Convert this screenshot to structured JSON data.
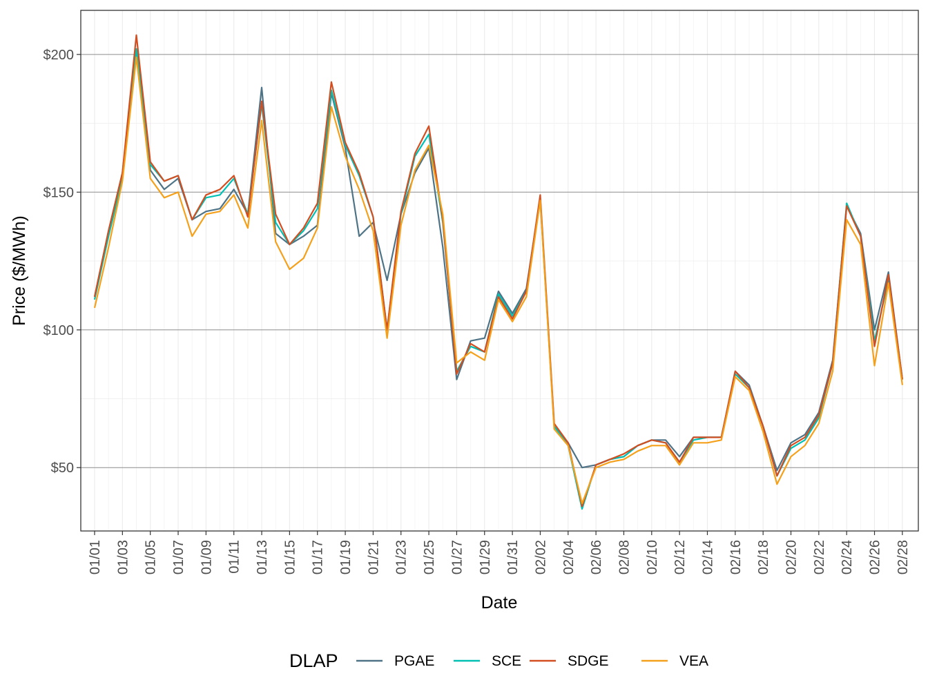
{
  "chart_data": {
    "type": "line",
    "xlabel": "Date",
    "ylabel": "Price ($/MWh)",
    "x_ticks": [
      "01/01",
      "01/03",
      "01/05",
      "01/07",
      "01/09",
      "01/11",
      "01/13",
      "01/15",
      "01/17",
      "01/19",
      "01/21",
      "01/23",
      "01/25",
      "01/27",
      "01/29",
      "01/31",
      "02/02",
      "02/04",
      "02/06",
      "02/08",
      "02/10",
      "02/12",
      "02/14",
      "02/16",
      "02/18",
      "02/20",
      "02/22",
      "02/24",
      "02/26",
      "02/28"
    ],
    "y_ticks": [
      50,
      100,
      150,
      200
    ],
    "y_tick_labels": [
      "$50",
      "$100",
      "$150",
      "$200"
    ],
    "ylim": [
      27,
      216
    ],
    "x": [
      "01/01",
      "01/02",
      "01/03",
      "01/04",
      "01/05",
      "01/06",
      "01/07",
      "01/08",
      "01/09",
      "01/10",
      "01/11",
      "01/12",
      "01/13",
      "01/14",
      "01/15",
      "01/16",
      "01/17",
      "01/18",
      "01/19",
      "01/20",
      "01/21",
      "01/22",
      "01/23",
      "01/24",
      "01/25",
      "01/26",
      "01/27",
      "01/28",
      "01/29",
      "01/30",
      "01/31",
      "02/01",
      "02/02",
      "02/03",
      "02/04",
      "02/05",
      "02/06",
      "02/07",
      "02/08",
      "02/09",
      "02/10",
      "02/11",
      "02/12",
      "02/13",
      "02/14",
      "02/15",
      "02/16",
      "02/17",
      "02/18",
      "02/19",
      "02/20",
      "02/21",
      "02/22",
      "02/23",
      "02/24",
      "02/25",
      "02/26",
      "02/27",
      "02/28"
    ],
    "grid": true,
    "legend": {
      "title": "DLAP",
      "position": "bottom"
    },
    "series": [
      {
        "name": "PGAE",
        "color": "#4e7386",
        "values": [
          112,
          136,
          157,
          202,
          158,
          151,
          155,
          140,
          143,
          144,
          151,
          142,
          188,
          135,
          131,
          134,
          138,
          186,
          166,
          134,
          139,
          118,
          142,
          157,
          166,
          130,
          82,
          96,
          97,
          114,
          106,
          115,
          148,
          65,
          59,
          50,
          51,
          53,
          54,
          58,
          60,
          60,
          54,
          61,
          61,
          61,
          85,
          80,
          65,
          49,
          59,
          62,
          70,
          89,
          145,
          135,
          100,
          121,
          82
        ]
      },
      {
        "name": "SCE",
        "color": "#00bfb3",
        "values": [
          111,
          134,
          155,
          202,
          160,
          154,
          156,
          140,
          148,
          149,
          155,
          142,
          182,
          139,
          131,
          136,
          144,
          187,
          167,
          156,
          141,
          100,
          142,
          163,
          171,
          139,
          85,
          94,
          92,
          113,
          105,
          114,
          147,
          65,
          58,
          35,
          51,
          53,
          54,
          58,
          60,
          59,
          52,
          60,
          61,
          61,
          84,
          79,
          65,
          47,
          57,
          60,
          68,
          88,
          146,
          134,
          96,
          118,
          82
        ]
      },
      {
        "name": "SDGE",
        "color": "#d24e21",
        "values": [
          112,
          136,
          157,
          207,
          161,
          154,
          156,
          140,
          149,
          151,
          156,
          141,
          183,
          142,
          131,
          137,
          146,
          190,
          168,
          157,
          141,
          100,
          143,
          164,
          174,
          140,
          84,
          95,
          92,
          112,
          104,
          114,
          149,
          66,
          59,
          36,
          51,
          53,
          55,
          58,
          60,
          59,
          52,
          61,
          61,
          61,
          85,
          79,
          65,
          47,
          58,
          61,
          69,
          88,
          145,
          134,
          94,
          120,
          82
        ]
      },
      {
        "name": "VEA",
        "color": "#f5a01a",
        "values": [
          108,
          130,
          154,
          199,
          155,
          148,
          150,
          134,
          142,
          143,
          149,
          137,
          176,
          132,
          122,
          126,
          137,
          181,
          163,
          151,
          136,
          97,
          138,
          158,
          167,
          142,
          88,
          92,
          89,
          111,
          103,
          112,
          147,
          64,
          58,
          37,
          50,
          52,
          53,
          56,
          58,
          58,
          51,
          59,
          59,
          60,
          83,
          78,
          63,
          44,
          54,
          58,
          66,
          85,
          140,
          131,
          87,
          117,
          80
        ]
      }
    ]
  }
}
